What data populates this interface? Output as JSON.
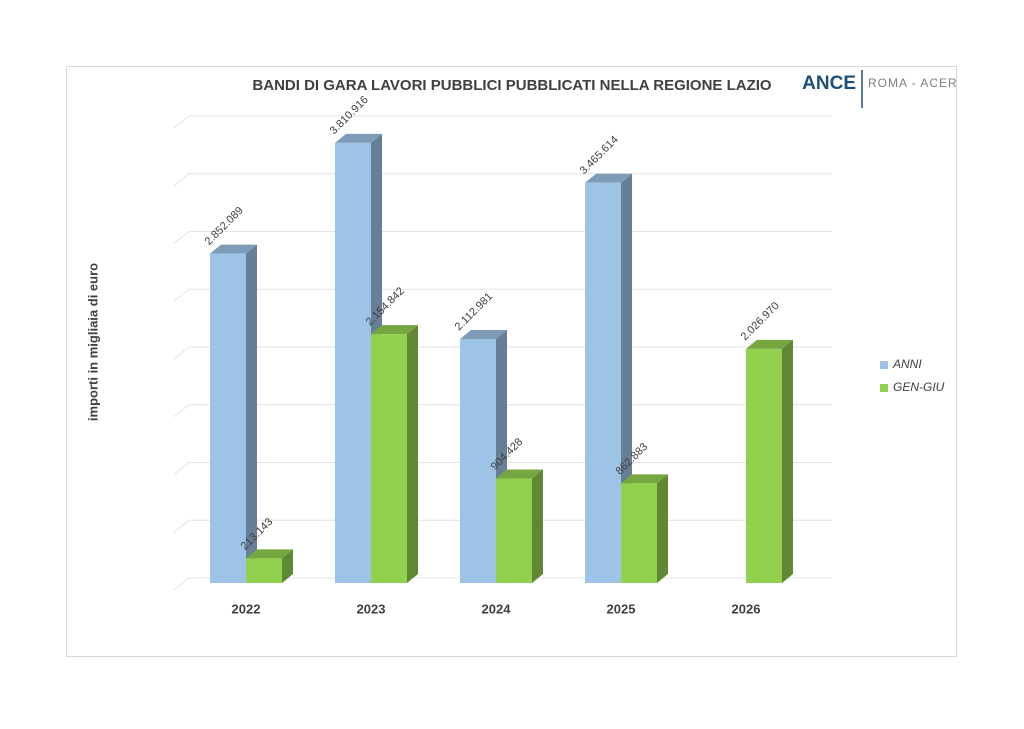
{
  "chart_data": {
    "type": "bar3d",
    "title": "BANDI DI GARA LAVORI PUBBLICI PUBBLICATI NELLA REGIONE LAZIO",
    "y_label": "importi in migliaia di euro",
    "categories": [
      "2022",
      "2023",
      "2024",
      "2025",
      "2026"
    ],
    "series": [
      {
        "name": "ANNI",
        "color": "#9dc3e6",
        "values": [
          2852089,
          3810916,
          2112981,
          3465614,
          null
        ],
        "value_labels": [
          "2.852.089",
          "3.810.916",
          "2.112.981",
          "3.465.614",
          null
        ]
      },
      {
        "name": "GEN-GIU",
        "color": "#92d050",
        "values": [
          213143,
          2154842,
          904428,
          862883,
          2026970
        ],
        "value_labels": [
          "213.143",
          "2.154.842",
          "904.428",
          "862.883",
          "2.026.970"
        ]
      }
    ],
    "ylim": [
      0,
      4000000
    ],
    "yticks": [
      0,
      500000,
      1000000,
      1500000,
      2000000,
      2500000,
      3000000,
      3500000,
      4000000
    ],
    "grid": true,
    "legend": "right"
  },
  "logo": {
    "brand": "ANCE",
    "sub": "ROMA - ACER"
  }
}
